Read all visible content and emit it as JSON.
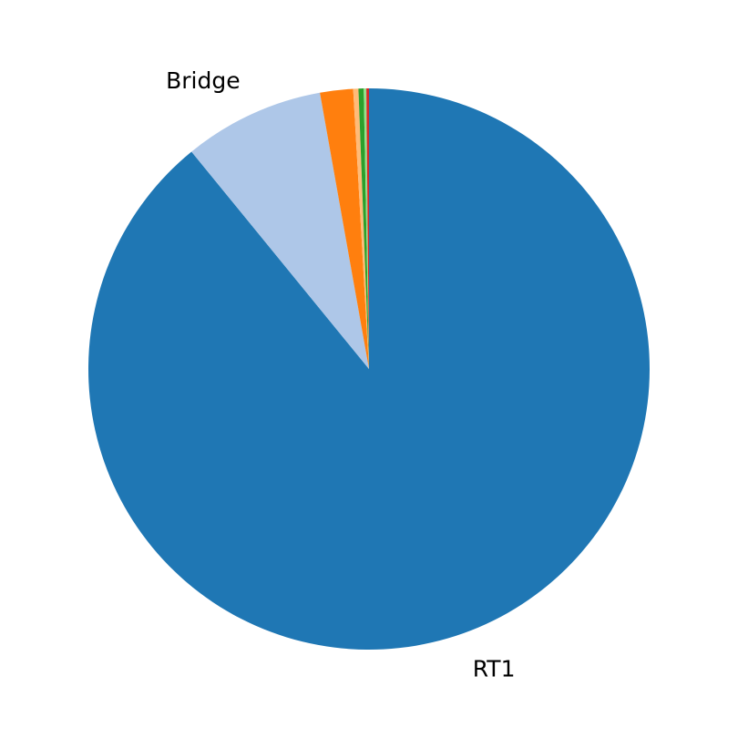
{
  "chart_data": {
    "type": "pie",
    "start_angle_deg": 90,
    "direction": "clockwise",
    "slices": [
      {
        "label": "RT1",
        "value": 89.1,
        "color": "#1f77b4",
        "show_label": true
      },
      {
        "label": "Bridge",
        "value": 8.1,
        "color": "#aec7e8",
        "show_label": true
      },
      {
        "label": "",
        "value": 1.9,
        "color": "#ff7f0e",
        "show_label": false
      },
      {
        "label": "",
        "value": 0.3,
        "color": "#ffbb78",
        "show_label": false
      },
      {
        "label": "",
        "value": 0.3,
        "color": "#2ca02c",
        "show_label": false
      },
      {
        "label": "",
        "value": 0.15,
        "color": "#98df8a",
        "show_label": false
      },
      {
        "label": "",
        "value": 0.15,
        "color": "#d62728",
        "show_label": false
      }
    ]
  }
}
